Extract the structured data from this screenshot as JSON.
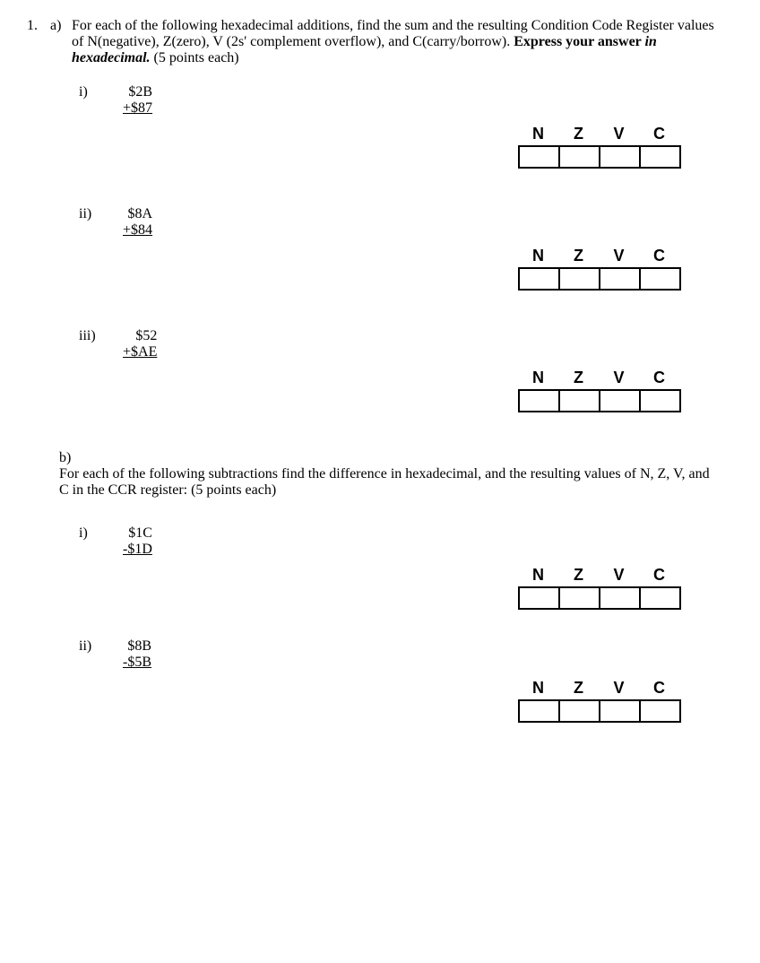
{
  "question": {
    "number": "1.",
    "part_a_label": "a)",
    "part_a_text_1": "For each of the following hexadecimal additions, find the sum and the resulting Condition Code Register values of N(negative), Z(zero), V (2s' complement overflow), and C(carry/borrow). ",
    "part_a_bold": "Express your answer ",
    "part_a_italic": "in hexadecimal.",
    "part_a_points": " (5 points each)",
    "part_b_label": "b)",
    "part_b_text": "For each of the following subtractions find the difference in hexadecimal, and the resulting values of N, Z, V, and C in the CCR register: (5 points each)"
  },
  "ccr": {
    "headers": [
      "N",
      "Z",
      "V",
      "C"
    ]
  },
  "problems_a": [
    {
      "label": "i)",
      "op1": "$2B",
      "op2": "+$87"
    },
    {
      "label": "ii)",
      "op1": "$8A",
      "op2": "+$84"
    },
    {
      "label": "iii)",
      "op1": "$52",
      "op2": "+$AE"
    }
  ],
  "problems_b": [
    {
      "label": "i)",
      "op1": "$1C",
      "op2": "-$1D"
    },
    {
      "label": "ii)",
      "op1": "$8B",
      "op2": "-$5B"
    }
  ]
}
